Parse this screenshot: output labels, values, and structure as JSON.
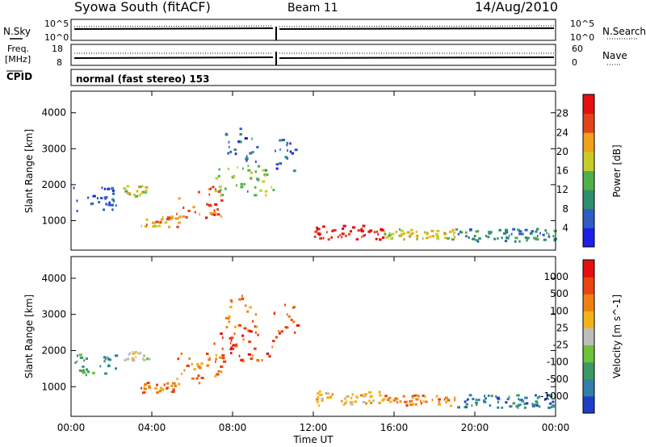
{
  "header": {
    "station": "Syowa South (fitACF)",
    "beam": "Beam 11",
    "date": "14/Aug/2010"
  },
  "panels": {
    "nsky_label": "N.Sky",
    "nsky_hi": "10^5",
    "nsky_lo": "10^0",
    "nsearch_label": "N.Search",
    "nsearch_hi": "10^5",
    "nsearch_lo": "10^0",
    "freq_label_1": "Freq.",
    "freq_label_2": "[MHz]",
    "freq_hi": "18",
    "freq_lo": "8",
    "nave_label": "Nave",
    "nave_hi": "60",
    "nave_lo": "0",
    "cpid_label": "CPID",
    "mode_text": "normal (fast stereo) 153"
  },
  "chart_data": [
    {
      "type": "heatmap",
      "panel": "power",
      "xlabel": "Time UT",
      "ylabel": "Slant Range [km]",
      "x_range_hours": [
        0,
        24
      ],
      "ylim": [
        180,
        4600
      ],
      "y_ticks": [
        1000,
        2000,
        3000,
        4000
      ],
      "colorbar": {
        "label": "Power [dB]",
        "ticks": [
          "4",
          "8",
          "12",
          "16",
          "20",
          "24",
          "28"
        ],
        "colors": [
          "#1e1ee6",
          "#2e5dc4",
          "#2f8d6f",
          "#4fb04a",
          "#c7cc2a",
          "#f0a21a",
          "#e2431c",
          "#e60f0f"
        ]
      },
      "echo_regions": [
        {
          "t0": 0.1,
          "t1": 2.2,
          "r0": 1300,
          "r1": 2000,
          "level": 1
        },
        {
          "t0": 2.5,
          "t1": 3.8,
          "r0": 1700,
          "r1": 2000,
          "level": 4
        },
        {
          "t0": 3.3,
          "t1": 5.3,
          "r0": 850,
          "r1": 1150,
          "level": 5
        },
        {
          "t0": 5.2,
          "t1": 7.5,
          "r0": 1100,
          "r1": 2000,
          "level": 6
        },
        {
          "t0": 7.0,
          "t1": 10.0,
          "r0": 1700,
          "r1": 2600,
          "level": 3
        },
        {
          "t0": 7.6,
          "t1": 9.2,
          "r0": 2600,
          "r1": 3600,
          "level": 1
        },
        {
          "t0": 10.0,
          "t1": 11.2,
          "r0": 2400,
          "r1": 3300,
          "level": 1
        },
        {
          "t0": 12.0,
          "t1": 15.5,
          "r0": 500,
          "r1": 900,
          "level": 7
        },
        {
          "t0": 15.5,
          "t1": 19.0,
          "r0": 500,
          "r1": 800,
          "level": 4
        },
        {
          "t0": 19.0,
          "t1": 24.0,
          "r0": 450,
          "r1": 800,
          "level": 2
        }
      ]
    },
    {
      "type": "heatmap",
      "panel": "velocity",
      "xlabel": "Time UT",
      "ylabel": "Slant Range [km]",
      "x_range_hours": [
        0,
        24
      ],
      "ylim": [
        180,
        4600
      ],
      "y_ticks": [
        1000,
        2000,
        3000,
        4000
      ],
      "colorbar": {
        "label": "Velocity [m s^-1]",
        "ticks": [
          "1000",
          "500",
          "100",
          "25",
          "-25",
          "-100",
          "-500",
          "-1000"
        ],
        "colors": [
          "#1e3ec8",
          "#2f7fa8",
          "#3b9a63",
          "#6cc23a",
          "#bdbdbd",
          "#f4b21a",
          "#f07f12",
          "#e84310",
          "#e60f0f"
        ]
      },
      "echo_regions": [
        {
          "t0": 0.1,
          "t1": 2.2,
          "r0": 1300,
          "r1": 2000,
          "level": 2
        },
        {
          "t0": 2.5,
          "t1": 3.8,
          "r0": 1700,
          "r1": 2000,
          "level": 4
        },
        {
          "t0": 3.3,
          "t1": 5.3,
          "r0": 850,
          "r1": 1150,
          "level": 6
        },
        {
          "t0": 5.2,
          "t1": 7.5,
          "r0": 1100,
          "r1": 2000,
          "level": 6
        },
        {
          "t0": 7.0,
          "t1": 10.0,
          "r0": 1700,
          "r1": 2600,
          "level": 7
        },
        {
          "t0": 7.6,
          "t1": 9.2,
          "r0": 2600,
          "r1": 3600,
          "level": 6
        },
        {
          "t0": 10.0,
          "t1": 11.2,
          "r0": 2400,
          "r1": 3300,
          "level": 7
        },
        {
          "t0": 12.0,
          "t1": 15.5,
          "r0": 500,
          "r1": 900,
          "level": 5
        },
        {
          "t0": 15.5,
          "t1": 19.0,
          "r0": 500,
          "r1": 800,
          "level": 6
        },
        {
          "t0": 19.0,
          "t1": 24.0,
          "r0": 450,
          "r1": 800,
          "level": 1
        }
      ]
    }
  ],
  "x_ticks": [
    "00:00",
    "04:00",
    "08:00",
    "12:00",
    "16:00",
    "20:00",
    "00:00"
  ]
}
